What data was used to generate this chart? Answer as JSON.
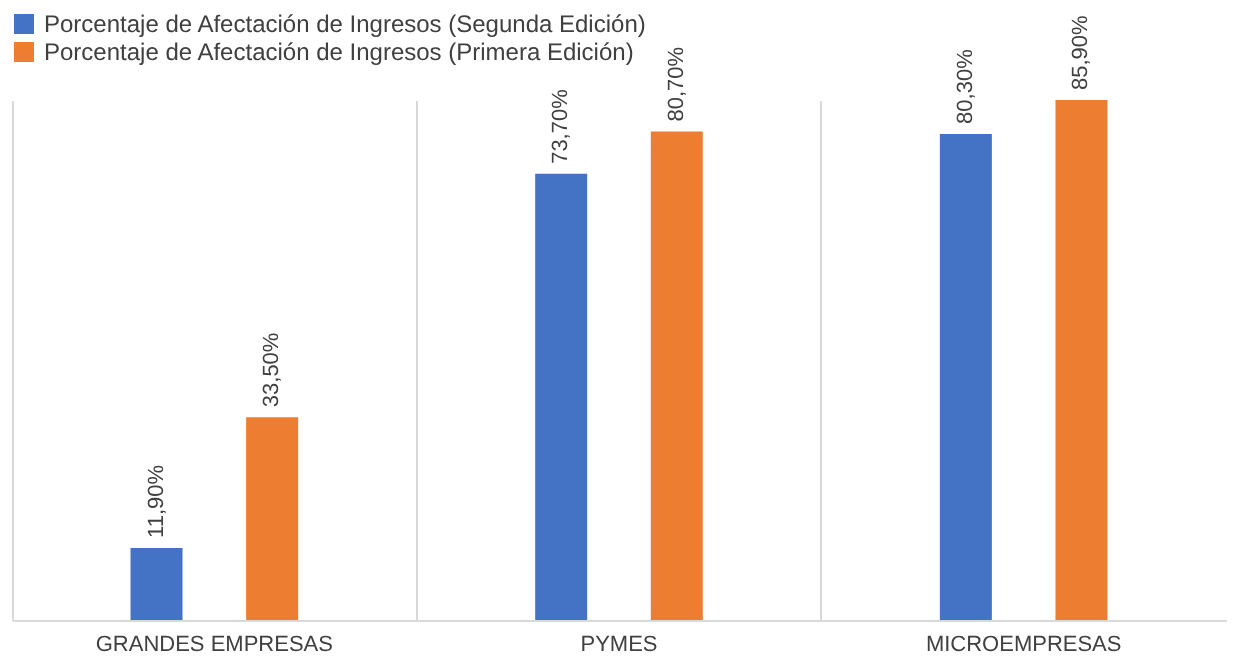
{
  "chart_data": {
    "type": "bar",
    "categories": [
      "GRANDES EMPRESAS",
      "PYMES",
      "MICROEMPRESAS"
    ],
    "series": [
      {
        "name": "Porcentaje de Afectación de Ingresos (Segunda Edición)",
        "color": "#4472c4",
        "values": [
          11.9,
          73.7,
          80.3
        ],
        "value_labels": [
          "11,90%",
          "73,70%",
          "80,30%"
        ]
      },
      {
        "name": "Porcentaje de Afectación de Ingresos (Primera Edición)",
        "color": "#ed7d31",
        "values": [
          33.5,
          80.7,
          85.9
        ],
        "value_labels": [
          "33,50%",
          "80,70%",
          "85,90%"
        ]
      }
    ],
    "legend": "top",
    "grid": "x",
    "tick_labels": "x"
  }
}
